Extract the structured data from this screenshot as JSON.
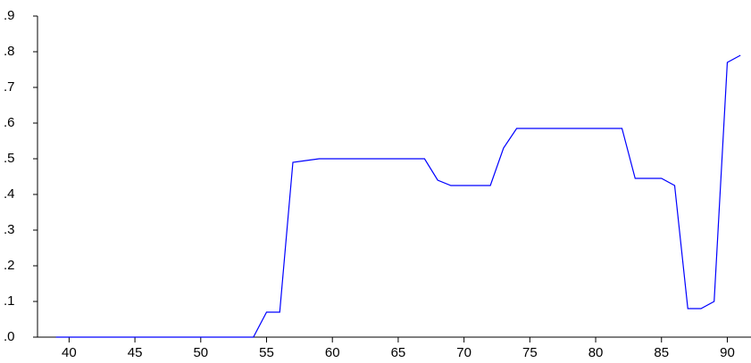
{
  "chart_data": {
    "type": "line",
    "x": [
      39,
      40,
      41,
      42,
      43,
      44,
      45,
      46,
      47,
      48,
      49,
      50,
      51,
      52,
      53,
      54,
      55,
      56,
      57,
      58,
      59,
      60,
      61,
      62,
      63,
      64,
      65,
      66,
      67,
      68,
      69,
      70,
      71,
      72,
      73,
      74,
      75,
      76,
      77,
      78,
      79,
      80,
      81,
      82,
      83,
      84,
      85,
      86,
      87,
      88,
      89,
      90,
      91
    ],
    "series": [
      {
        "color": "#0000ff",
        "values": [
          0,
          0,
          0,
          0,
          0,
          0,
          0,
          0,
          0,
          0,
          0,
          0,
          0,
          0,
          0,
          0,
          0.07,
          0.07,
          0.49,
          0.495,
          0.5,
          0.5,
          0.5,
          0.5,
          0.5,
          0.5,
          0.5,
          0.5,
          0.5,
          0.44,
          0.425,
          0.425,
          0.425,
          0.425,
          0.53,
          0.585,
          0.585,
          0.585,
          0.585,
          0.585,
          0.585,
          0.585,
          0.585,
          0.585,
          0.445,
          0.445,
          0.445,
          0.425,
          0.08,
          0.08,
          0.1,
          0.77,
          0.79
        ]
      }
    ],
    "xlim": [
      37.6,
      91.8
    ],
    "xticks": [
      40,
      45,
      50,
      55,
      60,
      65,
      70,
      75,
      80,
      85,
      90
    ],
    "ylim": [
      0,
      0.9
    ],
    "yticks": [
      {
        "value": 0,
        "label": ".0"
      },
      {
        "value": 0.1,
        "label": ".1"
      },
      {
        "value": 0.2,
        "label": ".2"
      },
      {
        "value": 0.3,
        "label": ".3"
      },
      {
        "value": 0.4,
        "label": ".4"
      },
      {
        "value": 0.5,
        "label": ".5"
      },
      {
        "value": 0.6,
        "label": ".6"
      },
      {
        "value": 0.7,
        "label": ".7"
      },
      {
        "value": 0.8,
        "label": ".8"
      },
      {
        "value": 0.9,
        "label": ".9"
      }
    ]
  }
}
